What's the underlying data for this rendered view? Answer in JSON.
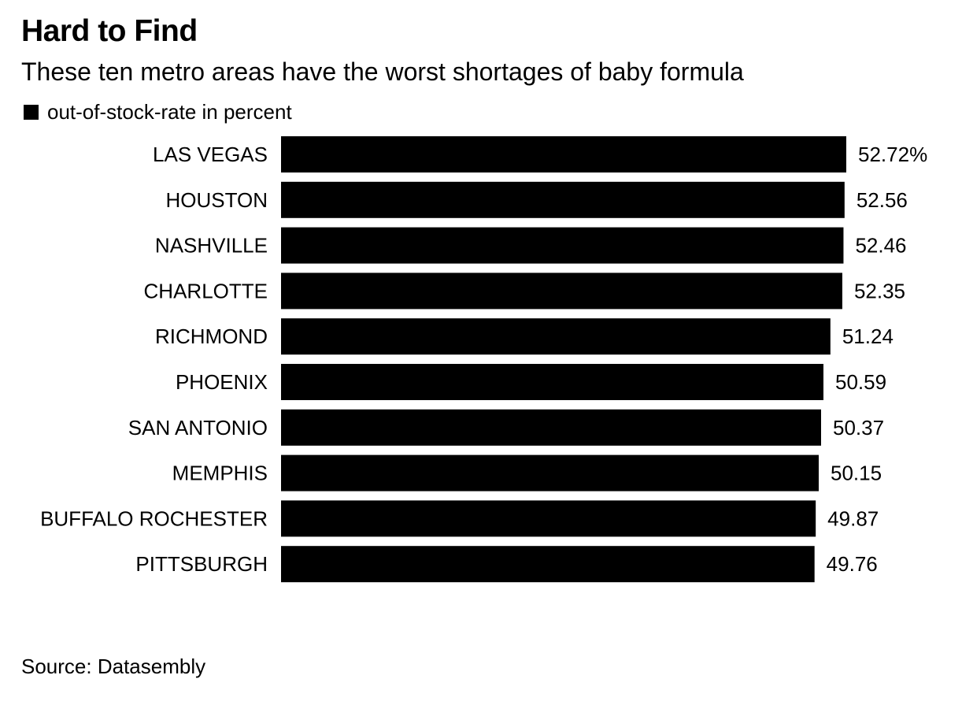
{
  "header": {
    "title": "Hard to Find",
    "subtitle": "These ten metro areas have the worst shortages of baby formula"
  },
  "legend": {
    "label": "out-of-stock-rate in percent",
    "swatch_color": "#000000"
  },
  "footer": {
    "source": "Source: Datasembly"
  },
  "chart_data": {
    "type": "bar",
    "orientation": "horizontal",
    "title": "Hard to Find",
    "subtitle": "These ten metro areas have the worst shortages of baby formula",
    "categories": [
      "LAS VEGAS",
      "HOUSTON",
      "NASHVILLE",
      "CHARLOTTE",
      "RICHMOND",
      "PHOENIX",
      "SAN ANTONIO",
      "MEMPHIS",
      "BUFFALO ROCHESTER",
      "PITTSBURGH"
    ],
    "series": [
      {
        "name": "out-of-stock-rate in percent",
        "values": [
          52.72,
          52.56,
          52.46,
          52.35,
          51.24,
          50.59,
          50.37,
          50.15,
          49.87,
          49.76
        ],
        "data_labels": [
          "52.72%",
          "52.56",
          "52.46",
          "52.35",
          "51.24",
          "50.59",
          "50.37",
          "50.15",
          "49.87",
          "49.76"
        ]
      }
    ],
    "bar_color": "#000000",
    "xlim": [
      0,
      52.72
    ],
    "grid": false,
    "legend_position": "top-left",
    "source": "Source: Datasembly"
  }
}
